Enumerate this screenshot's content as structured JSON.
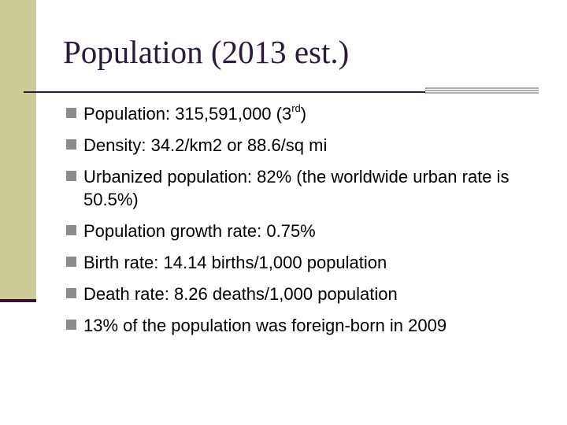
{
  "slide": {
    "title": "Population (2013 est.)",
    "bullets": [
      {
        "pre": "Population: 315,591,000 (3",
        "sup": "rd",
        "post": ")"
      },
      {
        "pre": "Density:  34.2/km2 or 88.6/sq mi",
        "sup": "",
        "post": ""
      },
      {
        "pre": "Urbanized population: 82% (the worldwide urban rate is 50.5%)",
        "sup": "",
        "post": ""
      },
      {
        "pre": "Population growth rate: 0.75%",
        "sup": "",
        "post": ""
      },
      {
        "pre": "Birth rate: 14.14 births/1,000 population",
        "sup": "",
        "post": ""
      },
      {
        "pre": "Death rate: 8.26 deaths/1,000 population",
        "sup": "",
        "post": ""
      },
      {
        "pre": "13% of the population was foreign-born in 2009",
        "sup": "",
        "post": ""
      }
    ]
  },
  "colors": {
    "sidebar": "#cccc99",
    "title": "#2b1a3a",
    "bullet": "#8c8c8c"
  },
  "icons": {
    "bullet": "square-bullet-icon"
  }
}
